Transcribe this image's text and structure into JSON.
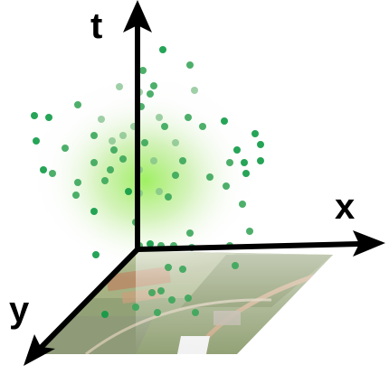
{
  "axes": {
    "time_label": "t",
    "x_label": "x",
    "y_label": "y"
  },
  "colors": {
    "axis": "#000000",
    "glow": "#8ee65a",
    "point_dark": "#0e9a45",
    "point_mid": "#3aa65a",
    "point_light": "#7fbf8a",
    "map_green": "#8c9b6a",
    "map_road": "#c9a27a"
  },
  "icons": {
    "arrow_head": "arrow-head-icon"
  }
}
